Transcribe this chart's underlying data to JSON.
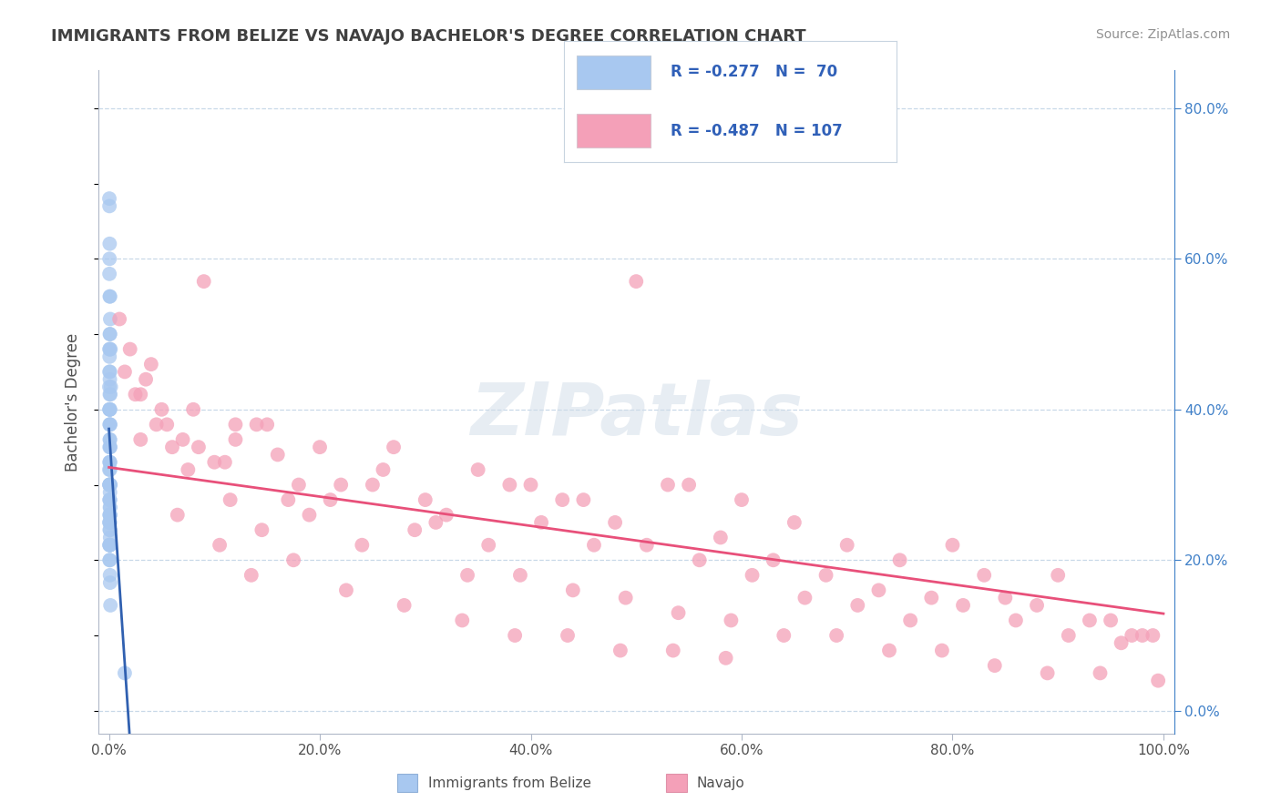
{
  "title": "IMMIGRANTS FROM BELIZE VS NAVAJO BACHELOR'S DEGREE CORRELATION CHART",
  "source": "Source: ZipAtlas.com",
  "ylabel": "Bachelor's Degree",
  "x_tick_labels": [
    "0.0%",
    "20.0%",
    "40.0%",
    "60.0%",
    "80.0%",
    "100.0%"
  ],
  "x_tick_values": [
    0,
    20,
    40,
    60,
    80,
    100
  ],
  "right_ytick_values": [
    0,
    20,
    40,
    60,
    80
  ],
  "right_ytick_labels": [
    "0.0%",
    "20.0%",
    "40.0%",
    "60.0%",
    "80.0%"
  ],
  "legend_labels": [
    "Immigrants from Belize",
    "Navajo"
  ],
  "r_blue": -0.277,
  "n_blue": 70,
  "r_pink": -0.487,
  "n_pink": 107,
  "blue_color": "#a8c8f0",
  "pink_color": "#f4a0b8",
  "blue_line_color": "#3060b0",
  "pink_line_color": "#e8507a",
  "background_color": "#ffffff",
  "grid_color": "#c8d8e8",
  "title_color": "#404040",
  "legend_text_color": "#3060b8",
  "watermark": "ZIPatlas",
  "blue_scatter_x": [
    0.05,
    0.07,
    0.1,
    0.12,
    0.15,
    0.18,
    0.05,
    0.08,
    0.1,
    0.13,
    0.07,
    0.09,
    0.12,
    0.06,
    0.08,
    0.11,
    0.14,
    0.05,
    0.07,
    0.1,
    0.06,
    0.09,
    0.12,
    0.07,
    0.1,
    0.05,
    0.08,
    0.11,
    0.06,
    0.09,
    0.04,
    0.06,
    0.09,
    0.07,
    0.1,
    0.13,
    0.05,
    0.08,
    0.11,
    0.06,
    0.04,
    0.07,
    0.1,
    0.12,
    0.08,
    0.06,
    0.09,
    0.11,
    0.07,
    0.1,
    0.05,
    0.08,
    0.1,
    0.06,
    0.09,
    0.04,
    0.07,
    0.09,
    0.11,
    0.06,
    0.08,
    0.1,
    0.05,
    0.08,
    0.11,
    0.14,
    0.06,
    0.09,
    0.12,
    1.5
  ],
  "blue_scatter_y": [
    67,
    62,
    55,
    52,
    48,
    43,
    45,
    42,
    40,
    38,
    38,
    36,
    35,
    35,
    33,
    32,
    30,
    30,
    30,
    28,
    28,
    27,
    26,
    26,
    25,
    25,
    24,
    23,
    22,
    22,
    68,
    60,
    50,
    48,
    45,
    42,
    40,
    38,
    35,
    33,
    32,
    30,
    29,
    27,
    26,
    25,
    24,
    22,
    20,
    18,
    58,
    55,
    50,
    47,
    44,
    43,
    40,
    36,
    33,
    30,
    28,
    26,
    22,
    20,
    17,
    14,
    48,
    40,
    30,
    5
  ],
  "pink_scatter_x": [
    1.0,
    2.0,
    3.5,
    5.0,
    7.0,
    9.0,
    12.0,
    3.0,
    6.0,
    10.0,
    15.0,
    18.0,
    20.0,
    25.0,
    30.0,
    35.0,
    40.0,
    45.0,
    50.0,
    55.0,
    60.0,
    65.0,
    70.0,
    75.0,
    80.0,
    85.0,
    90.0,
    95.0,
    97.0,
    99.0,
    4.0,
    8.0,
    12.0,
    16.0,
    22.0,
    27.0,
    32.0,
    38.0,
    43.0,
    48.0,
    53.0,
    58.0,
    63.0,
    68.0,
    73.0,
    78.0,
    83.0,
    88.0,
    93.0,
    98.0,
    2.5,
    5.5,
    8.5,
    11.0,
    14.0,
    17.0,
    21.0,
    26.0,
    31.0,
    36.0,
    41.0,
    46.0,
    51.0,
    56.0,
    61.0,
    66.0,
    71.0,
    76.0,
    81.0,
    86.0,
    91.0,
    96.0,
    1.5,
    4.5,
    7.5,
    11.5,
    14.5,
    19.0,
    24.0,
    29.0,
    34.0,
    39.0,
    44.0,
    49.0,
    54.0,
    59.0,
    64.0,
    69.0,
    74.0,
    79.0,
    84.0,
    89.0,
    94.0,
    99.5,
    3.0,
    6.5,
    10.5,
    13.5,
    17.5,
    22.5,
    28.0,
    33.5,
    38.5,
    43.5,
    48.5,
    53.5,
    58.5
  ],
  "pink_scatter_y": [
    52,
    48,
    44,
    40,
    36,
    57,
    38,
    42,
    35,
    33,
    38,
    30,
    35,
    30,
    28,
    32,
    30,
    28,
    57,
    30,
    28,
    25,
    22,
    20,
    22,
    15,
    18,
    12,
    10,
    10,
    46,
    40,
    36,
    34,
    30,
    35,
    26,
    30,
    28,
    25,
    30,
    23,
    20,
    18,
    16,
    15,
    18,
    14,
    12,
    10,
    42,
    38,
    35,
    33,
    38,
    28,
    28,
    32,
    25,
    22,
    25,
    22,
    22,
    20,
    18,
    15,
    14,
    12,
    14,
    12,
    10,
    9,
    45,
    38,
    32,
    28,
    24,
    26,
    22,
    24,
    18,
    18,
    16,
    15,
    13,
    12,
    10,
    10,
    8,
    8,
    6,
    5,
    5,
    4,
    36,
    26,
    22,
    18,
    20,
    16,
    14,
    12,
    10,
    10,
    8,
    8,
    7
  ]
}
